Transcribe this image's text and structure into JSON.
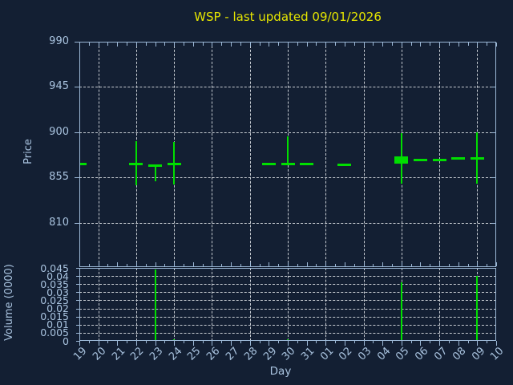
{
  "title": {
    "text": "WSP - last updated 09/01/2026"
  },
  "colors": {
    "background": "#131f33",
    "axis": "#9cb8d6",
    "tick_label": "#a9c3df",
    "grid": "#c6cbd1",
    "candle_green": "#00de00",
    "title_yellow": "#e6e600"
  },
  "price_axis": {
    "label": "Price",
    "tick_labels": [
      "990",
      "945",
      "900",
      "855",
      "810"
    ],
    "range": [
      766,
      990
    ]
  },
  "volume_axis": {
    "label": "Volume (0000)",
    "tick_labels": [
      "0.045",
      "0.04",
      "0.035",
      "0.03",
      "0.025",
      "0.02",
      "0.015",
      "0.01",
      "0.005",
      "0"
    ],
    "range": [
      0,
      0.045
    ]
  },
  "x_axis": {
    "label": "Day",
    "tick_labels": [
      "19",
      "20",
      "21",
      "22",
      "23",
      "24",
      "25",
      "26",
      "27",
      "28",
      "29",
      "30",
      "31",
      "01",
      "02",
      "03",
      "04",
      "05",
      "06",
      "07",
      "08",
      "09",
      "10"
    ],
    "gridline_indices": [
      1,
      3,
      5,
      7,
      9,
      11,
      13,
      15,
      17,
      19,
      21
    ]
  },
  "chart_data": {
    "type": "candlestick+volume",
    "title": "WSP - last updated 09/01/2026",
    "xlabel": "Day",
    "ylabel_price": "Price",
    "ylabel_volume": "Volume (0000)",
    "price_ylim": [
      766,
      990
    ],
    "volume_ylim": [
      0,
      0.045
    ],
    "grid": "on",
    "x_categories": [
      "19",
      "20",
      "21",
      "22",
      "23",
      "24",
      "25",
      "26",
      "27",
      "28",
      "29",
      "30",
      "31",
      "01",
      "02",
      "03",
      "04",
      "05",
      "06",
      "07",
      "08",
      "09",
      "10"
    ],
    "candles": [
      {
        "day": "19",
        "open": 870,
        "close": 870,
        "high": 870,
        "low": 870,
        "volume": 0
      },
      {
        "day": "22",
        "open": 870,
        "close": 870,
        "high": 891,
        "low": 847,
        "volume": 0
      },
      {
        "day": "23",
        "open": 868,
        "close": 868,
        "high": 868,
        "low": 851,
        "volume": 0.044
      },
      {
        "day": "24",
        "open": 870,
        "close": 870,
        "high": 890,
        "low": 848,
        "volume": 0.001
      },
      {
        "day": "29",
        "open": 870,
        "close": 870,
        "high": 870,
        "low": 870,
        "volume": 0
      },
      {
        "day": "30",
        "open": 870,
        "close": 870,
        "high": 896,
        "low": 870,
        "volume": 0.001
      },
      {
        "day": "31",
        "open": 870,
        "close": 870,
        "high": 870,
        "low": 870,
        "volume": 0
      },
      {
        "day": "02",
        "open": 869,
        "close": 869,
        "high": 869,
        "low": 869,
        "volume": 0
      },
      {
        "day": "05",
        "open": 869,
        "close": 876,
        "high": 899,
        "low": 849,
        "volume": 0.036
      },
      {
        "day": "06",
        "open": 874,
        "close": 874,
        "high": 874,
        "low": 874,
        "volume": 0
      },
      {
        "day": "07",
        "open": 874,
        "close": 874,
        "high": 874,
        "low": 874,
        "volume": 0
      },
      {
        "day": "08",
        "open": 875,
        "close": 875,
        "high": 875,
        "low": 875,
        "volume": 0
      },
      {
        "day": "09",
        "open": 875,
        "close": 875,
        "high": 900,
        "low": 849,
        "volume": 0.04
      }
    ]
  }
}
